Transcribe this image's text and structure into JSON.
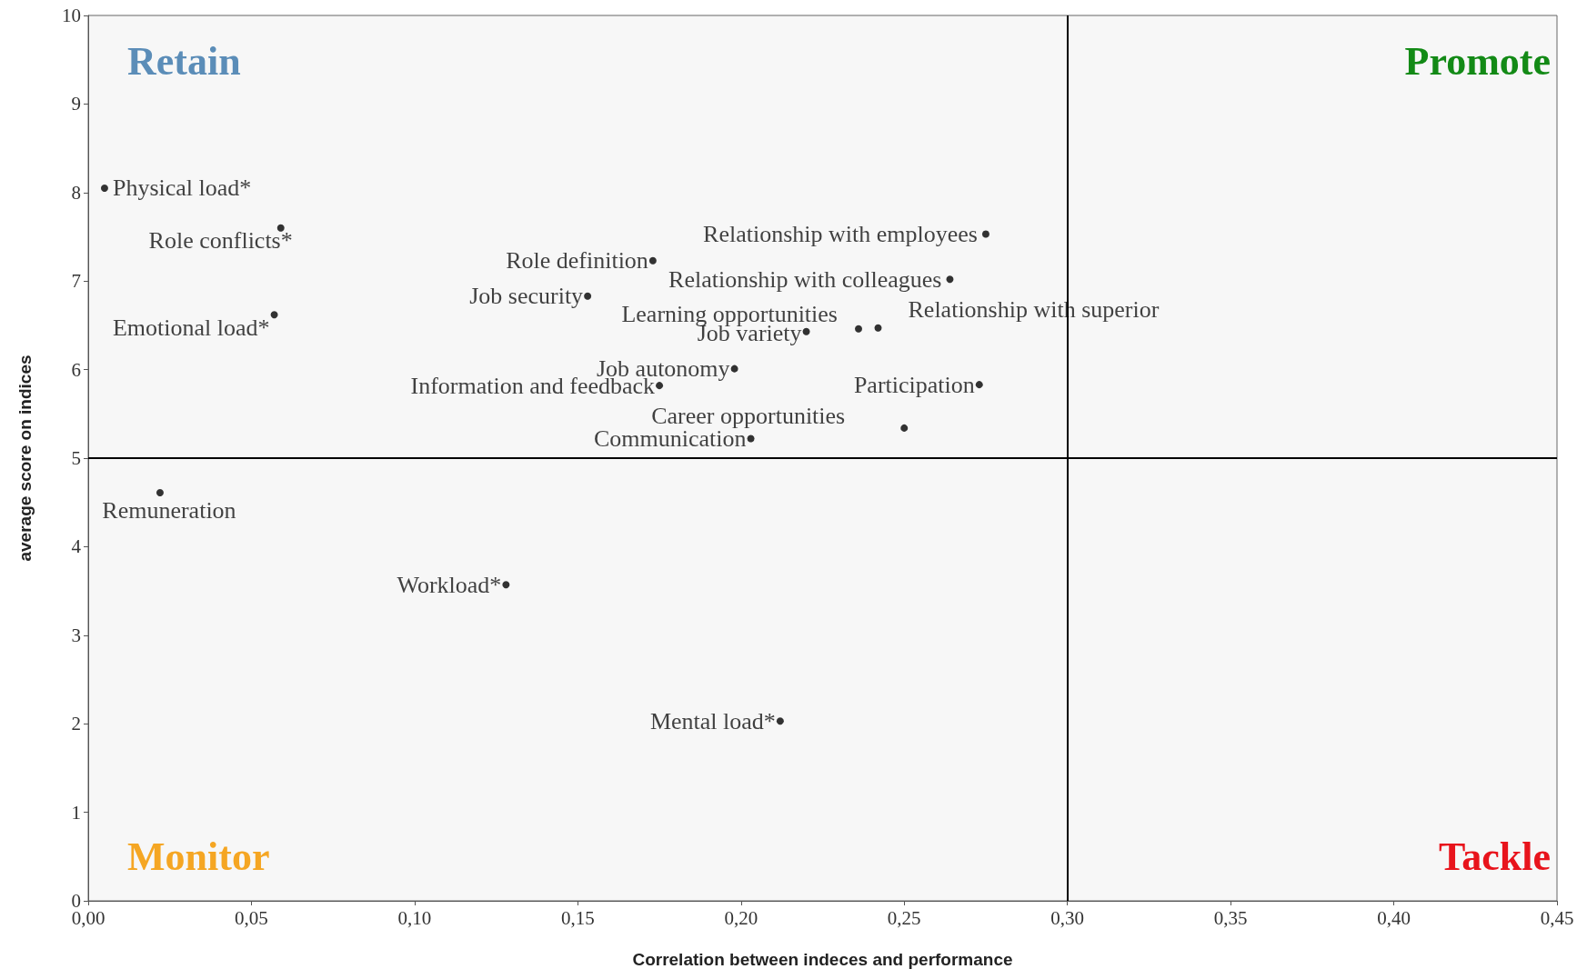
{
  "chart_data": {
    "type": "scatter",
    "xlabel": "Correlation between indeces and performance",
    "ylabel": "average score on indices",
    "x": [
      0.005,
      0.059,
      0.057,
      0.173,
      0.153,
      0.275,
      0.264,
      0.22,
      0.236,
      0.242,
      0.198,
      0.175,
      0.273,
      0.25,
      0.203,
      0.022,
      0.128,
      0.212
    ],
    "values": [
      8.05,
      7.6,
      6.62,
      7.23,
      6.83,
      7.53,
      7.02,
      6.43,
      6.46,
      6.47,
      6.01,
      5.82,
      5.83,
      5.34,
      5.22,
      4.61,
      3.57,
      2.03
    ],
    "color": "#000000",
    "marker": "circle",
    "grid": false,
    "xlim": [
      0,
      0.45
    ],
    "xticks": [
      {
        "value": 0,
        "label": "0,00"
      },
      {
        "value": 0.05,
        "label": "0,05"
      },
      {
        "value": 0.1,
        "label": "0,10"
      },
      {
        "value": 0.15,
        "label": "0,15"
      },
      {
        "value": 0.2,
        "label": "0,20"
      },
      {
        "value": 0.25,
        "label": "0,25"
      },
      {
        "value": 0.3,
        "label": "0,30"
      },
      {
        "value": 0.35,
        "label": "0,35"
      },
      {
        "value": 0.4,
        "label": "0,40"
      },
      {
        "value": 0.45,
        "label": "0,45"
      }
    ],
    "ylim": [
      0,
      10
    ],
    "yticks": [
      0,
      1,
      2,
      3,
      4,
      5,
      6,
      7,
      8,
      9,
      10
    ],
    "ref_lines": [
      {
        "axis": "x",
        "value": 0.3,
        "color": "#000000"
      },
      {
        "axis": "y",
        "value": 5,
        "color": "#000000"
      }
    ],
    "annotations": [
      "Retain",
      "Promote",
      "Monitor",
      "Tackle",
      {
        "text": "Physical load*",
        "x": 0.005,
        "y": 8.05
      },
      {
        "text": "Role conflicts*",
        "x": 0.059,
        "y": 7.6
      },
      {
        "text": "Emotional load*",
        "x": 0.057,
        "y": 6.62
      },
      {
        "text": "Role definition",
        "x": 0.173,
        "y": 7.23
      },
      {
        "text": "Job security",
        "x": 0.153,
        "y": 6.83
      },
      {
        "text": "Relationship with employees",
        "x": 0.275,
        "y": 7.53
      },
      {
        "text": "Relationship with colleagues",
        "x": 0.264,
        "y": 7.02
      },
      {
        "text": "Job variety",
        "x": 0.22,
        "y": 6.43
      },
      {
        "text": "Learning opportunities",
        "x": 0.236,
        "y": 6.46
      },
      {
        "text": "Relationship with superior",
        "x": 0.242,
        "y": 6.47
      },
      {
        "text": "Job autonomy",
        "x": 0.198,
        "y": 6.01
      },
      {
        "text": "Information and feedback",
        "x": 0.175,
        "y": 5.82
      },
      {
        "text": "Participation",
        "x": 0.273,
        "y": 5.83
      },
      {
        "text": "Career opportunities",
        "x": 0.25,
        "y": 5.34
      },
      {
        "text": "Communication",
        "x": 0.203,
        "y": 5.22
      },
      {
        "text": "Remuneration",
        "x": 0.022,
        "y": 4.61
      },
      {
        "text": "Workload*",
        "x": 0.128,
        "y": 3.57
      },
      {
        "text": "Mental load*",
        "x": 0.212,
        "y": 2.03
      }
    ]
  }
}
